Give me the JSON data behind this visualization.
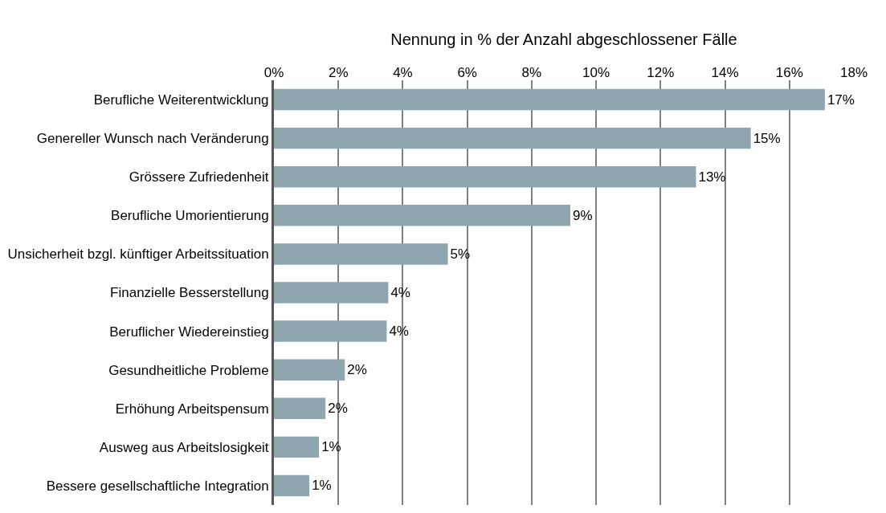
{
  "chart_data": {
    "type": "bar",
    "orientation": "horizontal",
    "xlabel": "Nennung in % der Anzahl abgeschlossener Fälle",
    "categories": [
      "Berufliche Weiterentwicklung",
      "Genereller Wunsch nach Veränderung",
      "Grössere Zufriedenheit",
      "Berufliche Umorientierung",
      "Unsicherheit bzgl. künftiger Arbeitssituation",
      "Finanzielle Besserstellung",
      "Beruflicher Wiedereinstieg",
      "Gesundheitliche Probleme",
      "Erhöhung Arbeitspensum",
      "Ausweg aus Arbeitslosigkeit",
      "Bessere gesellschaftliche Integration"
    ],
    "values": [
      17.1,
      14.8,
      13.1,
      9.2,
      5.4,
      3.55,
      3.5,
      2.2,
      1.6,
      1.4,
      1.1
    ],
    "value_labels": [
      "17%",
      "15%",
      "13%",
      "9%",
      "5%",
      "4%",
      "4%",
      "2%",
      "2%",
      "1%",
      "1%"
    ],
    "color": "#8fa5b0",
    "xlim": [
      0,
      18
    ],
    "xticks": [
      {
        "value": 0,
        "label": "0%"
      },
      {
        "value": 2,
        "label": "2%"
      },
      {
        "value": 4,
        "label": "4%"
      },
      {
        "value": 6,
        "label": "6%"
      },
      {
        "value": 8,
        "label": "8%"
      },
      {
        "value": 10,
        "label": "10%"
      },
      {
        "value": 12,
        "label": "12%"
      },
      {
        "value": 14,
        "label": "14%"
      },
      {
        "value": 16,
        "label": "16%"
      },
      {
        "value": 18,
        "label": "18%"
      }
    ],
    "grid": "x",
    "legend": false
  }
}
